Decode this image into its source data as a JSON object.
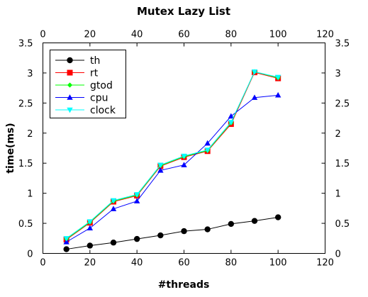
{
  "chart_data": {
    "type": "line",
    "title": "Mutex Lazy List",
    "xlabel": "#threads",
    "ylabel": "time(ms)",
    "xlim": [
      0,
      120
    ],
    "ylim": [
      0,
      3.5
    ],
    "xticks": [
      "0",
      "20",
      "40",
      "60",
      "80",
      "100",
      "120"
    ],
    "yticks": [
      "0",
      "0.5",
      "1",
      "1.5",
      "2",
      "2.5",
      "3",
      "3.5"
    ],
    "mirror_axes": true,
    "grid": false,
    "legend_position": "top-left",
    "x": [
      10,
      20,
      30,
      40,
      50,
      60,
      70,
      80,
      90,
      100
    ],
    "series": [
      {
        "name": "th",
        "color": "#000000",
        "marker": "circle",
        "values": [
          0.07,
          0.13,
          0.18,
          0.24,
          0.3,
          0.37,
          0.4,
          0.49,
          0.54,
          0.6
        ]
      },
      {
        "name": "rt",
        "color": "#ff0000",
        "marker": "square",
        "values": [
          0.23,
          0.51,
          0.86,
          0.96,
          1.45,
          1.6,
          1.7,
          2.15,
          3.01,
          2.91
        ]
      },
      {
        "name": "gtod",
        "color": "#00ff00",
        "marker": "diamond",
        "values": [
          0.24,
          0.52,
          0.87,
          0.97,
          1.46,
          1.61,
          1.71,
          2.17,
          3.02,
          2.92
        ]
      },
      {
        "name": "cpu",
        "color": "#0000ff",
        "marker": "triangle",
        "values": [
          0.19,
          0.42,
          0.74,
          0.87,
          1.38,
          1.47,
          1.83,
          2.28,
          2.59,
          2.63
        ]
      },
      {
        "name": "clock",
        "color": "#00ffff",
        "marker": "triangle-down",
        "values": [
          0.25,
          0.53,
          0.88,
          0.98,
          1.47,
          1.62,
          1.72,
          2.18,
          3.02,
          2.93
        ]
      }
    ]
  }
}
